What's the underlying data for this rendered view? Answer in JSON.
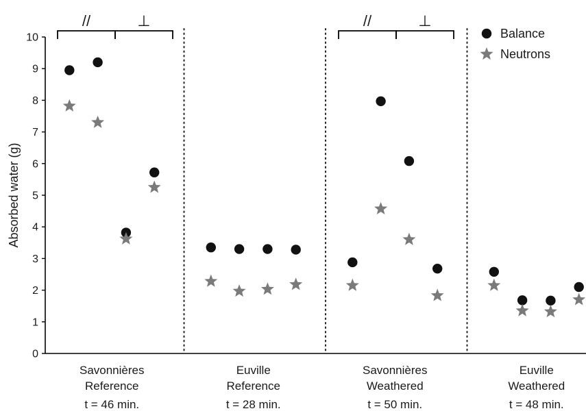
{
  "chart_data": {
    "type": "scatter",
    "ylabel": "Absorbed water (g)",
    "ylim": [
      0,
      10
    ],
    "yticks": [
      "0",
      "1",
      "2",
      "3",
      "4",
      "5",
      "6",
      "7",
      "8",
      "9",
      "10"
    ],
    "legend_position": "top-right",
    "colors": {
      "balance": "#111111",
      "neutrons": "#7a7a7a"
    },
    "groups": [
      {
        "line1": "Savonnières",
        "line2": "Reference",
        "time": "t = 46 min."
      },
      {
        "line1": "Euville",
        "line2": "Reference",
        "time": "t = 28 min."
      },
      {
        "line1": "Savonnières",
        "line2": "Weathered",
        "time": "t = 50 min."
      },
      {
        "line1": "Euville",
        "line2": "Weathered",
        "time": "t = 48 min."
      }
    ],
    "orientation_labels": {
      "parallel": "//",
      "perpendicular": "⊥"
    },
    "series": [
      {
        "name": "Balance",
        "marker": "circle",
        "x": [
          1,
          2,
          3,
          4,
          6,
          7,
          8,
          9,
          11,
          12,
          13,
          14,
          16,
          17,
          18,
          19
        ],
        "values": [
          8.95,
          9.2,
          3.82,
          5.72,
          3.35,
          3.3,
          3.3,
          3.28,
          2.88,
          7.97,
          6.08,
          2.68,
          2.58,
          1.68,
          1.67,
          2.1
        ]
      },
      {
        "name": "Neutrons",
        "marker": "star",
        "x": [
          1,
          2,
          3,
          4,
          6,
          7,
          8,
          9,
          11,
          12,
          13,
          14,
          16,
          17,
          18,
          19
        ],
        "values": [
          7.82,
          7.3,
          3.62,
          5.25,
          2.28,
          1.97,
          2.03,
          2.18,
          2.15,
          4.57,
          3.6,
          1.83,
          2.15,
          1.35,
          1.32,
          1.7
        ]
      }
    ]
  }
}
